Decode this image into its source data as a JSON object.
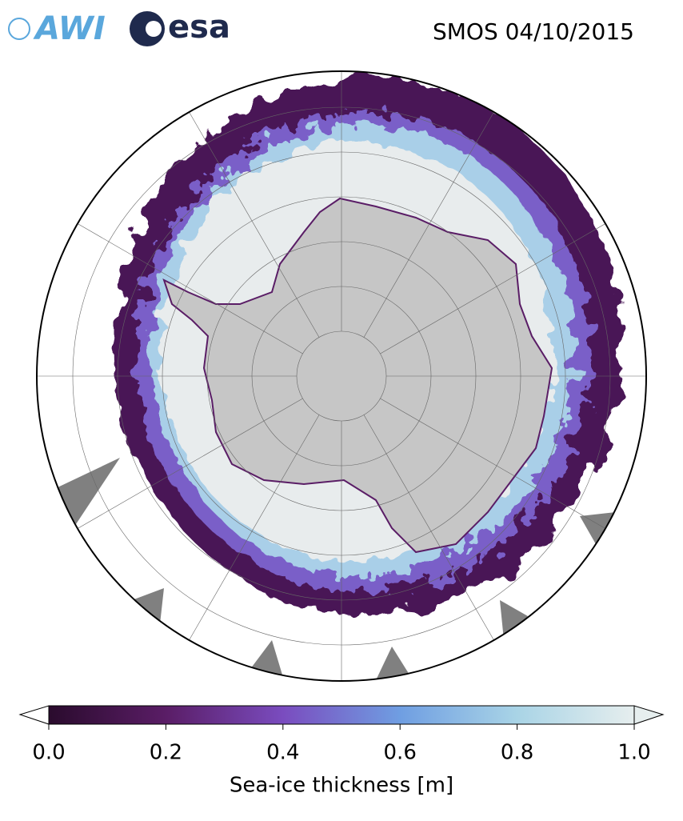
{
  "header": {
    "logos": [
      "AWI",
      "esa"
    ],
    "title": "SMOS 04/10/2015"
  },
  "colorbar": {
    "label": "Sea-ice thickness [m]",
    "lim": [
      0,
      1
    ],
    "ticks": [
      {
        "value": 0,
        "label": "0.0"
      },
      0.2,
      0.4,
      0.6,
      0.8,
      {
        "value": 1,
        "label": "1.0"
      }
    ],
    "colormap": [
      "#2a0b2d",
      "#5a1d66",
      "#7a4cbf",
      "#6f9ee2",
      "#a9d4e6",
      "#e6eeee"
    ]
  }
}
